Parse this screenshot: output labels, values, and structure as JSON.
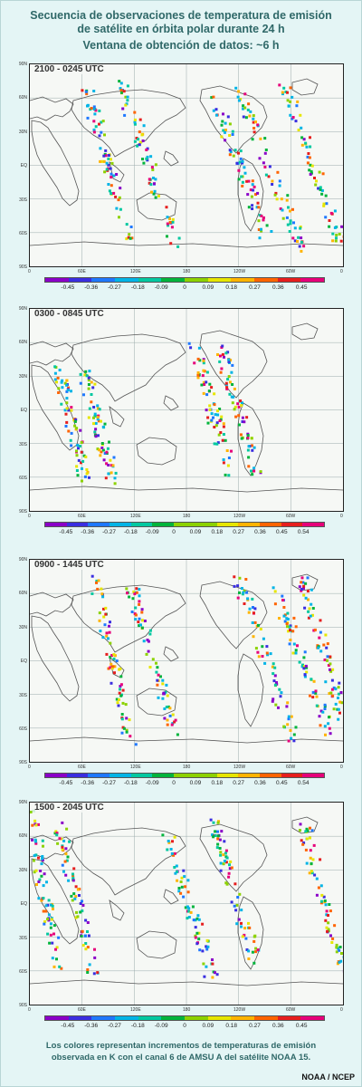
{
  "title": {
    "line1": "Secuencia de observaciones de temperatura de emisión",
    "line2": "de satélite en órbita polar durante 24 h",
    "line3": "Ventana de obtención de datos: ~6 h"
  },
  "lat_labels": [
    "90N",
    "60N",
    "30N",
    "EQ",
    "30S",
    "60S",
    "90S"
  ],
  "lon_labels": [
    "0",
    "60E",
    "120E",
    "180",
    "120W",
    "60W",
    "0"
  ],
  "panels": [
    {
      "label": "2100 - 0245 UTC",
      "colorbar_ticks": [
        "-0.45",
        "-0.36",
        "-0.27",
        "-0.18",
        "-0.09",
        "0",
        "0.09",
        "0.18",
        "0.27",
        "0.36",
        "0.45"
      ]
    },
    {
      "label": "0300 - 0845 UTC",
      "colorbar_ticks": [
        "-0.45",
        "-0.36",
        "-0.27",
        "-0.18",
        "-0.09",
        "0",
        "0.09",
        "0.18",
        "0.27",
        "0.36",
        "0.45",
        "0.54"
      ]
    },
    {
      "label": "0900 - 1445 UTC",
      "colorbar_ticks": [
        "-0.45",
        "-0.36",
        "-0.27",
        "-0.18",
        "-0.09",
        "0",
        "0.09",
        "0.18",
        "0.27",
        "0.36",
        "0.45",
        "0.54"
      ]
    },
    {
      "label": "1500 - 2045 UTC",
      "colorbar_ticks": [
        "-0.45",
        "-0.36",
        "-0.27",
        "-0.18",
        "-0.09",
        "0",
        "0.09",
        "0.18",
        "0.27",
        "0.36",
        "0.45"
      ]
    }
  ],
  "colorbar_colors": [
    "#8a00c8",
    "#3a2ee0",
    "#1e78ff",
    "#00b4e6",
    "#00c8a0",
    "#00b43c",
    "#8cd200",
    "#e6e600",
    "#ffb400",
    "#ff6400",
    "#e61e1e",
    "#e6007a"
  ],
  "footer": {
    "line1": "Los colores representan incrementos de temperaturas de emisión",
    "line2": "observada en K con el canal 6 de AMSU A del satélite NOAA 15."
  },
  "credit": "NOAA / NCEP"
}
